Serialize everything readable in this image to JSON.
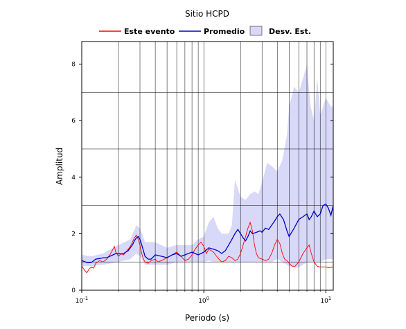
{
  "chart_data": {
    "type": "line",
    "title": "Sitio HCPD",
    "xlabel": "Periodo (s)",
    "ylabel": "Amplitud",
    "x_scale": "log",
    "xlim": [
      0.1,
      11.5
    ],
    "ylim": [
      0,
      8.8
    ],
    "x_ticks": [
      {
        "value": 0.1,
        "base": "10",
        "exp": "-1"
      },
      {
        "value": 1,
        "base": "10",
        "exp": "0"
      },
      {
        "value": 10,
        "base": "10",
        "exp": "1"
      }
    ],
    "y_ticks": [
      {
        "value": 0,
        "label": "0"
      },
      {
        "value": 2,
        "label": "2"
      },
      {
        "value": 4,
        "label": "4"
      },
      {
        "value": 6,
        "label": "6"
      },
      {
        "value": 8,
        "label": "8"
      }
    ],
    "grid": "vertical log-decade lines and horizontal lines at 1, 3, 5, 7",
    "legend": {
      "position": "top-center",
      "entries": [
        "Este evento",
        "Promedio",
        "Desv. Est."
      ]
    },
    "colors": {
      "este_evento": "#ff0000",
      "promedio": "#0000cc",
      "desv_est": "#d8d8f8"
    },
    "series": [
      {
        "name": "Este evento",
        "points": [
          [
            0.1,
            0.85
          ],
          [
            0.105,
            0.72
          ],
          [
            0.11,
            0.62
          ],
          [
            0.115,
            0.75
          ],
          [
            0.12,
            0.82
          ],
          [
            0.125,
            0.78
          ],
          [
            0.13,
            0.95
          ],
          [
            0.14,
            1.05
          ],
          [
            0.15,
            1.0
          ],
          [
            0.16,
            1.1
          ],
          [
            0.17,
            1.25
          ],
          [
            0.18,
            1.45
          ],
          [
            0.185,
            1.55
          ],
          [
            0.19,
            1.35
          ],
          [
            0.2,
            1.2
          ],
          [
            0.21,
            1.3
          ],
          [
            0.22,
            1.25
          ],
          [
            0.23,
            1.35
          ],
          [
            0.24,
            1.45
          ],
          [
            0.25,
            1.55
          ],
          [
            0.26,
            1.7
          ],
          [
            0.27,
            1.85
          ],
          [
            0.28,
            1.95
          ],
          [
            0.29,
            1.8
          ],
          [
            0.3,
            1.6
          ],
          [
            0.31,
            1.3
          ],
          [
            0.32,
            1.1
          ],
          [
            0.33,
            1.0
          ],
          [
            0.35,
            0.95
          ],
          [
            0.37,
            1.05
          ],
          [
            0.4,
            1.1
          ],
          [
            0.42,
            1.0
          ],
          [
            0.45,
            1.05
          ],
          [
            0.5,
            1.15
          ],
          [
            0.55,
            1.25
          ],
          [
            0.6,
            1.35
          ],
          [
            0.65,
            1.2
          ],
          [
            0.7,
            1.05
          ],
          [
            0.75,
            1.1
          ],
          [
            0.8,
            1.25
          ],
          [
            0.85,
            1.45
          ],
          [
            0.9,
            1.6
          ],
          [
            0.95,
            1.7
          ],
          [
            1.0,
            1.55
          ],
          [
            1.05,
            1.3
          ],
          [
            1.1,
            1.45
          ],
          [
            1.2,
            1.35
          ],
          [
            1.3,
            1.15
          ],
          [
            1.4,
            1.0
          ],
          [
            1.5,
            1.05
          ],
          [
            1.6,
            1.2
          ],
          [
            1.7,
            1.15
          ],
          [
            1.8,
            1.05
          ],
          [
            1.9,
            1.1
          ],
          [
            2.0,
            1.3
          ],
          [
            2.1,
            1.6
          ],
          [
            2.2,
            1.9
          ],
          [
            2.3,
            2.2
          ],
          [
            2.4,
            2.4
          ],
          [
            2.5,
            2.1
          ],
          [
            2.6,
            1.6
          ],
          [
            2.7,
            1.3
          ],
          [
            2.8,
            1.15
          ],
          [
            3.0,
            1.1
          ],
          [
            3.2,
            1.05
          ],
          [
            3.4,
            1.1
          ],
          [
            3.6,
            1.3
          ],
          [
            3.8,
            1.6
          ],
          [
            4.0,
            1.8
          ],
          [
            4.2,
            1.65
          ],
          [
            4.4,
            1.3
          ],
          [
            4.6,
            1.1
          ],
          [
            4.8,
            1.05
          ],
          [
            5.0,
            0.95
          ],
          [
            5.3,
            0.85
          ],
          [
            5.6,
            0.85
          ],
          [
            6.0,
            1.0
          ],
          [
            6.5,
            1.3
          ],
          [
            7.0,
            1.5
          ],
          [
            7.3,
            1.6
          ],
          [
            7.6,
            1.3
          ],
          [
            8.0,
            1.0
          ],
          [
            8.5,
            0.85
          ],
          [
            9.0,
            0.82
          ],
          [
            10.0,
            0.82
          ],
          [
            10.5,
            0.8
          ],
          [
            11.5,
            0.82
          ]
        ]
      },
      {
        "name": "Promedio",
        "points": [
          [
            0.1,
            1.05
          ],
          [
            0.11,
            0.98
          ],
          [
            0.12,
            0.98
          ],
          [
            0.13,
            1.1
          ],
          [
            0.14,
            1.12
          ],
          [
            0.15,
            1.15
          ],
          [
            0.16,
            1.15
          ],
          [
            0.17,
            1.2
          ],
          [
            0.18,
            1.25
          ],
          [
            0.19,
            1.3
          ],
          [
            0.2,
            1.3
          ],
          [
            0.21,
            1.28
          ],
          [
            0.22,
            1.3
          ],
          [
            0.23,
            1.35
          ],
          [
            0.24,
            1.4
          ],
          [
            0.25,
            1.5
          ],
          [
            0.26,
            1.6
          ],
          [
            0.27,
            1.75
          ],
          [
            0.28,
            1.85
          ],
          [
            0.29,
            1.9
          ],
          [
            0.3,
            1.8
          ],
          [
            0.31,
            1.6
          ],
          [
            0.32,
            1.4
          ],
          [
            0.33,
            1.2
          ],
          [
            0.35,
            1.1
          ],
          [
            0.37,
            1.1
          ],
          [
            0.4,
            1.25
          ],
          [
            0.45,
            1.2
          ],
          [
            0.5,
            1.15
          ],
          [
            0.55,
            1.25
          ],
          [
            0.6,
            1.3
          ],
          [
            0.65,
            1.2
          ],
          [
            0.7,
            1.25
          ],
          [
            0.8,
            1.35
          ],
          [
            0.85,
            1.3
          ],
          [
            0.9,
            1.25
          ],
          [
            1.0,
            1.35
          ],
          [
            1.1,
            1.5
          ],
          [
            1.2,
            1.45
          ],
          [
            1.3,
            1.4
          ],
          [
            1.4,
            1.3
          ],
          [
            1.5,
            1.4
          ],
          [
            1.6,
            1.6
          ],
          [
            1.7,
            1.8
          ],
          [
            1.8,
            2.0
          ],
          [
            1.9,
            2.15
          ],
          [
            2.0,
            2.0
          ],
          [
            2.1,
            1.85
          ],
          [
            2.2,
            1.75
          ],
          [
            2.3,
            1.9
          ],
          [
            2.4,
            2.1
          ],
          [
            2.5,
            2.0
          ],
          [
            2.7,
            2.05
          ],
          [
            2.9,
            2.1
          ],
          [
            3.0,
            2.05
          ],
          [
            3.2,
            2.2
          ],
          [
            3.4,
            2.15
          ],
          [
            3.6,
            2.3
          ],
          [
            3.8,
            2.45
          ],
          [
            4.0,
            2.6
          ],
          [
            4.2,
            2.7
          ],
          [
            4.5,
            2.5
          ],
          [
            4.8,
            2.1
          ],
          [
            5.0,
            1.9
          ],
          [
            5.5,
            2.2
          ],
          [
            6.0,
            2.5
          ],
          [
            6.5,
            2.6
          ],
          [
            7.0,
            2.7
          ],
          [
            7.3,
            2.5
          ],
          [
            7.6,
            2.6
          ],
          [
            8.0,
            2.8
          ],
          [
            8.5,
            2.6
          ],
          [
            9.0,
            2.7
          ],
          [
            9.5,
            3.0
          ],
          [
            10.0,
            3.05
          ],
          [
            10.5,
            2.9
          ],
          [
            11.0,
            2.65
          ],
          [
            11.5,
            3.0
          ]
        ]
      }
    ],
    "band": {
      "name": "Desv. Est.",
      "x": [
        0.1,
        0.12,
        0.15,
        0.2,
        0.25,
        0.28,
        0.3,
        0.33,
        0.4,
        0.5,
        0.6,
        0.7,
        0.8,
        0.9,
        1.0,
        1.1,
        1.2,
        1.3,
        1.4,
        1.5,
        1.6,
        1.7,
        1.8,
        2.0,
        2.2,
        2.4,
        2.6,
        2.8,
        3.0,
        3.3,
        3.6,
        4.0,
        4.4,
        4.8,
        5.0,
        5.5,
        6.0,
        6.5,
        7.0,
        7.5,
        8.0,
        8.5,
        9.0,
        10.0,
        11.0,
        11.5
      ],
      "lower": [
        0.85,
        0.85,
        0.9,
        1.0,
        1.1,
        1.3,
        1.2,
        0.9,
        0.9,
        0.9,
        1.0,
        1.0,
        1.0,
        1.0,
        1.0,
        1.05,
        1.0,
        1.0,
        1.0,
        1.0,
        1.0,
        1.0,
        1.0,
        1.0,
        1.0,
        1.0,
        1.0,
        1.0,
        1.0,
        1.0,
        1.0,
        1.1,
        1.0,
        0.9,
        0.85,
        0.8,
        0.8,
        0.9,
        1.0,
        1.0,
        1.0,
        1.0,
        1.0,
        1.1,
        1.1,
        1.1
      ],
      "upper": [
        1.25,
        1.2,
        1.3,
        1.6,
        1.8,
        2.3,
        2.2,
        1.7,
        1.7,
        1.5,
        1.6,
        1.6,
        1.6,
        1.8,
        1.9,
        2.4,
        2.6,
        2.2,
        2.0,
        2.0,
        2.0,
        2.3,
        3.9,
        3.3,
        3.2,
        3.4,
        3.5,
        3.4,
        3.8,
        4.5,
        4.4,
        4.2,
        4.6,
        5.5,
        6.5,
        7.2,
        7.0,
        7.5,
        8.0,
        6.5,
        6.0,
        7.5,
        6.2,
        6.8,
        6.5,
        6.5
      ]
    }
  }
}
